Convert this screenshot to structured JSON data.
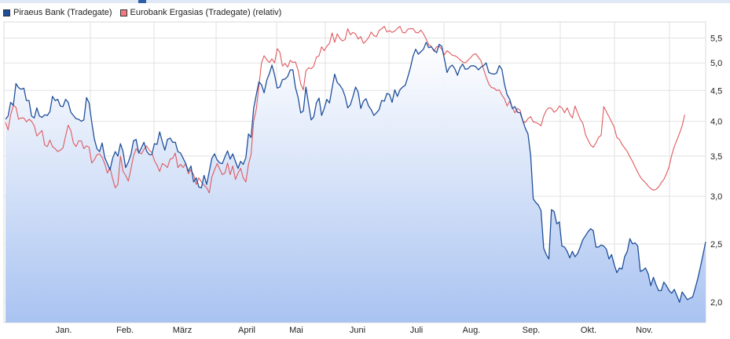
{
  "chart_data": {
    "type": "line",
    "title": "",
    "xlabel": "",
    "ylabel": "",
    "x_tick_labels": [
      "Jan.",
      "Feb.",
      "März",
      "April",
      "Mai",
      "Juni",
      "Juli",
      "Aug.",
      "Sep.",
      "Okt.",
      "Nov."
    ],
    "y_tick_labels": [
      "2,0",
      "2,5",
      "3,0",
      "3,5",
      "4,0",
      "4,5",
      "5,0",
      "5,5"
    ],
    "y_ticks": [
      2.0,
      2.5,
      3.0,
      3.5,
      4.0,
      4.5,
      5.0,
      5.5
    ],
    "ylim": [
      1.85,
      5.85
    ],
    "y_scale": "log",
    "grid": true,
    "legend_position": "top-left",
    "series": [
      {
        "name": "Piraeus Bank (Tradegate)",
        "color": "#1f4f9a",
        "fill": true,
        "values": [
          4.03,
          4.08,
          4.3,
          4.25,
          4.62,
          4.55,
          4.52,
          4.54,
          4.33,
          4.33,
          4.08,
          4.05,
          4.21,
          4.08,
          4.06,
          4.1,
          4.09,
          4.15,
          4.4,
          4.33,
          4.35,
          4.24,
          4.23,
          4.35,
          4.3,
          4.14,
          4.09,
          4.04,
          4.03,
          4.0,
          4.02,
          4.38,
          4.29,
          3.99,
          3.74,
          3.6,
          3.56,
          3.68,
          3.48,
          3.4,
          3.32,
          3.47,
          3.56,
          3.5,
          3.67,
          3.56,
          3.35,
          3.42,
          3.52,
          3.71,
          3.73,
          3.54,
          3.61,
          3.69,
          3.57,
          3.52,
          3.52,
          3.67,
          3.66,
          3.84,
          3.7,
          3.58,
          3.73,
          3.75,
          3.69,
          3.69,
          3.56,
          3.54,
          3.47,
          3.4,
          3.3,
          3.37,
          3.17,
          3.22,
          3.11,
          3.1,
          3.25,
          3.14,
          3.3,
          3.47,
          3.53,
          3.45,
          3.41,
          3.4,
          3.49,
          3.57,
          3.46,
          3.53,
          3.43,
          3.34,
          3.43,
          3.39,
          3.48,
          3.81,
          3.76,
          4.2,
          4.43,
          4.65,
          4.6,
          4.46,
          4.68,
          4.8,
          4.96,
          4.78,
          4.54,
          4.56,
          4.69,
          4.7,
          4.75,
          4.87,
          4.87,
          4.55,
          4.38,
          4.13,
          4.16,
          4.56,
          4.27,
          4.02,
          4.07,
          4.29,
          4.37,
          4.09,
          4.2,
          4.35,
          4.29,
          4.54,
          4.79,
          4.64,
          4.59,
          4.52,
          4.4,
          4.21,
          4.26,
          4.4,
          4.56,
          4.47,
          4.2,
          4.32,
          4.36,
          4.24,
          4.18,
          4.09,
          4.13,
          4.18,
          4.33,
          4.32,
          4.45,
          4.43,
          4.3,
          4.51,
          4.4,
          4.51,
          4.56,
          4.59,
          4.74,
          4.91,
          5.13,
          5.27,
          5.17,
          5.22,
          5.27,
          5.41,
          5.3,
          5.32,
          5.25,
          5.2,
          5.37,
          5.33,
          5.08,
          4.82,
          4.92,
          4.96,
          4.89,
          4.77,
          4.91,
          4.98,
          4.88,
          4.89,
          4.94,
          4.95,
          4.93,
          4.87,
          4.92,
          4.95,
          5.0,
          4.82,
          4.8,
          4.79,
          4.81,
          4.95,
          4.88,
          4.61,
          4.43,
          4.35,
          4.2,
          4.23,
          4.14,
          4.13,
          4.01,
          3.89,
          3.81,
          3.51,
          2.97,
          2.93,
          2.9,
          2.84,
          2.46,
          2.4,
          2.36,
          2.85,
          2.83,
          2.7,
          2.72,
          2.48,
          2.47,
          2.43,
          2.37,
          2.43,
          2.38,
          2.41,
          2.47,
          2.54,
          2.58,
          2.62,
          2.65,
          2.63,
          2.47,
          2.47,
          2.49,
          2.48,
          2.45,
          2.36,
          2.4,
          2.31,
          2.24,
          2.28,
          2.27,
          2.38,
          2.43,
          2.55,
          2.5,
          2.51,
          2.48,
          2.25,
          2.26,
          2.28,
          2.23,
          2.13,
          2.2,
          2.14,
          2.09,
          2.09,
          2.16,
          2.13,
          2.09,
          2.07,
          2.1,
          2.05,
          2.0,
          2.08,
          2.05,
          2.02,
          2.03,
          2.04,
          2.11,
          2.19,
          2.29,
          2.4,
          2.52
        ]
      },
      {
        "name": "Eurobank Ergasias (Tradegate) (relativ)",
        "color": "#e0595f",
        "fill": false,
        "values": [
          3.98,
          3.87,
          4.1,
          4.25,
          4.22,
          4.03,
          4.05,
          4.05,
          3.99,
          4.03,
          4.0,
          3.93,
          3.78,
          3.82,
          3.86,
          3.65,
          3.63,
          3.72,
          3.63,
          3.6,
          3.56,
          3.58,
          3.61,
          3.78,
          3.94,
          3.86,
          3.68,
          3.63,
          3.71,
          3.71,
          3.6,
          3.64,
          3.62,
          3.41,
          3.45,
          3.52,
          3.53,
          3.48,
          3.4,
          3.28,
          3.35,
          3.21,
          3.1,
          3.14,
          3.5,
          3.3,
          3.25,
          3.18,
          3.33,
          3.5,
          3.6,
          3.55,
          3.53,
          3.59,
          3.64,
          3.58,
          3.55,
          3.44,
          3.38,
          3.3,
          3.4,
          3.38,
          3.35,
          3.46,
          3.47,
          3.54,
          3.35,
          3.39,
          3.35,
          3.4,
          3.27,
          3.32,
          3.26,
          3.14,
          3.22,
          3.17,
          3.13,
          3.1,
          3.04,
          3.23,
          3.32,
          3.4,
          3.33,
          3.26,
          3.28,
          3.41,
          3.26,
          3.37,
          3.2,
          3.28,
          3.34,
          3.22,
          3.17,
          3.39,
          3.52,
          4.0,
          4.19,
          4.58,
          5.0,
          5.14,
          5.06,
          5.01,
          5.08,
          5.0,
          5.28,
          5.21,
          4.94,
          4.99,
          4.92,
          5.05,
          5.01,
          5.02,
          4.86,
          4.61,
          4.51,
          4.85,
          4.91,
          4.89,
          4.94,
          5.11,
          5.14,
          5.32,
          5.24,
          5.33,
          5.39,
          5.61,
          5.41,
          5.59,
          5.49,
          5.44,
          5.47,
          5.7,
          5.57,
          5.62,
          5.59,
          5.48,
          5.53,
          5.39,
          5.44,
          5.51,
          5.63,
          5.55,
          5.53,
          5.66,
          5.7,
          5.75,
          5.63,
          5.66,
          5.62,
          5.65,
          5.71,
          5.75,
          5.62,
          5.61,
          5.69,
          5.7,
          5.7,
          5.62,
          5.61,
          5.67,
          5.59,
          5.48,
          5.36,
          5.33,
          5.23,
          5.32,
          5.33,
          5.27,
          5.16,
          5.24,
          5.2,
          5.15,
          5.14,
          5.11,
          5.06,
          5.02,
          5.0,
          5.05,
          5.1,
          5.16,
          5.18,
          5.11,
          5.04,
          4.88,
          4.74,
          4.61,
          4.55,
          4.54,
          4.5,
          4.51,
          4.42,
          4.36,
          4.24,
          4.32,
          4.21,
          4.13,
          4.2,
          4.17,
          4.0,
          3.98,
          4.04,
          4.07,
          3.99,
          3.98,
          3.96,
          3.93,
          4.08,
          4.17,
          4.21,
          4.2,
          4.14,
          4.17,
          4.24,
          4.21,
          4.13,
          4.21,
          4.11,
          4.05,
          4.24,
          4.13,
          4.03,
          3.97,
          3.8,
          3.72,
          3.65,
          3.62,
          3.68,
          3.76,
          3.79,
          4.23,
          4.15,
          4.07,
          3.99,
          3.91,
          3.76,
          3.73,
          3.66,
          3.61,
          3.56,
          3.49,
          3.43,
          3.36,
          3.29,
          3.23,
          3.19,
          3.16,
          3.12,
          3.09,
          3.07,
          3.08,
          3.11,
          3.16,
          3.2,
          3.27,
          3.36,
          3.51,
          3.63,
          3.72,
          3.82,
          3.93,
          4.1
        ]
      }
    ]
  }
}
